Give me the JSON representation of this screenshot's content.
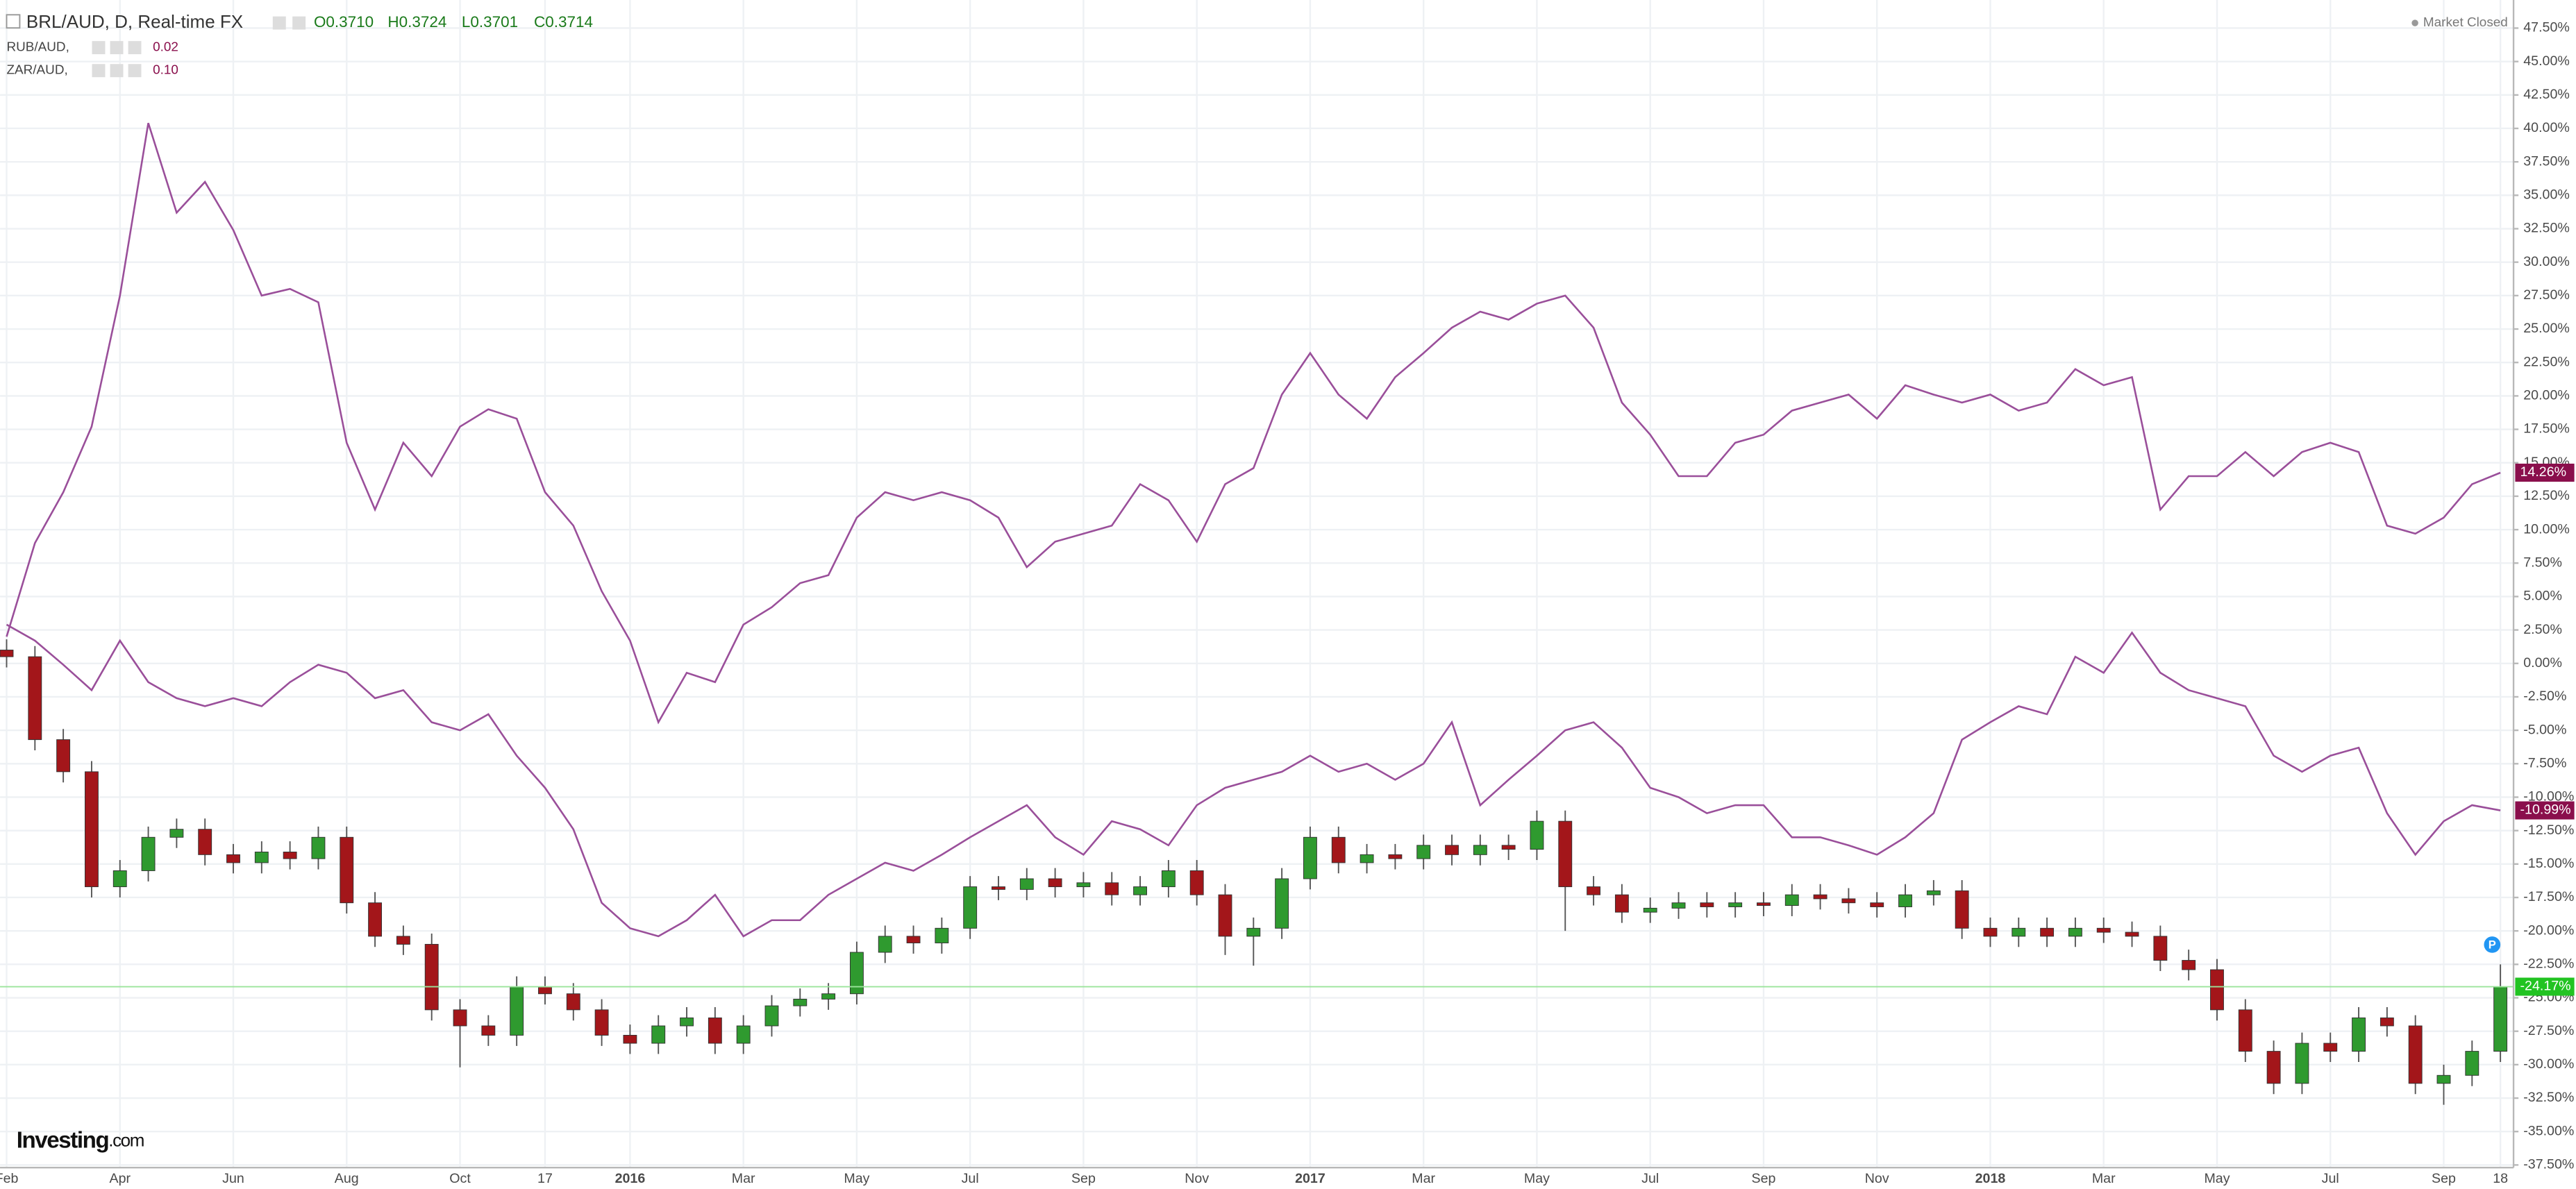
{
  "chart_data": {
    "type": "candlestick",
    "header": {
      "symbol": "BRL/AUD, D, Real-time FX",
      "open": "O0.3710",
      "high": "H0.3724",
      "low": "L0.3701",
      "close": "C0.3714"
    },
    "status": "Market Closed",
    "logo": {
      "brand": "Investing",
      "suffix": ".com"
    },
    "marker": "P",
    "categories": [
      "Feb",
      null,
      null,
      null,
      "Apr",
      null,
      null,
      null,
      "Jun",
      null,
      null,
      null,
      "Aug",
      null,
      null,
      null,
      "Oct",
      null,
      null,
      "17",
      null,
      null,
      "2016",
      null,
      null,
      null,
      "Mar",
      null,
      null,
      null,
      "May",
      null,
      null,
      null,
      "Jul",
      null,
      null,
      null,
      "Sep",
      null,
      null,
      null,
      "Nov",
      null,
      null,
      null,
      "2017",
      null,
      null,
      null,
      "Mar",
      null,
      null,
      null,
      "May",
      null,
      null,
      null,
      "Jul",
      null,
      null,
      null,
      "Sep",
      null,
      null,
      null,
      "Nov",
      null,
      null,
      null,
      "2018",
      null,
      null,
      null,
      "Mar",
      null,
      null,
      null,
      "May",
      null,
      null,
      null,
      "Jul",
      null,
      null,
      null,
      "Sep",
      null,
      "18"
    ],
    "candles": {
      "up_color": "#2f9a2f",
      "down_color": "#a3161a",
      "last_label": "-24.17%",
      "last_color": "#22c322",
      "open": [
        1.0,
        0.5,
        -5.7,
        -8.1,
        -16.7,
        -15.5,
        -13,
        -12.4,
        -14.3,
        -14.9,
        -14.1,
        -14.6,
        -13,
        -17.9,
        -20.4,
        -21,
        -25.9,
        -27.1,
        -27.8,
        -24.2,
        -24.7,
        -25.9,
        -27.8,
        -28.4,
        -27.1,
        -26.5,
        -28.4,
        -27.1,
        -25.6,
        -25.1,
        -24.7,
        -21.6,
        -20.4,
        -20.9,
        -19.8,
        -16.7,
        -16.9,
        -16.1,
        -16.7,
        -16.4,
        -17.3,
        -16.7,
        -15.5,
        -17.3,
        -20.4,
        -19.8,
        -16.1,
        -13,
        -14.9,
        -14.3,
        -14.6,
        -13.6,
        -14.3,
        -13.6,
        -13.9,
        -11.8,
        -16.7,
        -17.3,
        -18.6,
        -18.3,
        -17.9,
        -18.2,
        -17.9,
        -18.1,
        -17.3,
        -17.6,
        -17.9,
        -18.2,
        -17.3,
        -17.0,
        -19.8,
        -20.4,
        -19.8,
        -20.4,
        -19.8,
        -20.1,
        -20.4,
        -22.2,
        -22.9,
        -25.9,
        -29,
        -31.4,
        -28.4,
        -29,
        -26.5,
        -27.1,
        -31.4,
        -30.8,
        -29
      ],
      "high": [
        1.8,
        1.3,
        -4.9,
        -7.3,
        -14.7,
        -12.2,
        -11.6,
        -11.6,
        -13.5,
        -13.3,
        -13.3,
        -12.2,
        -12.2,
        -17.1,
        -19.6,
        -20.2,
        -25.1,
        -26.3,
        -23.4,
        -23.4,
        -23.9,
        -25.1,
        -27,
        -26.3,
        -25.7,
        -25.7,
        -26.3,
        -24.8,
        -24.3,
        -23.9,
        -20.8,
        -19.6,
        -19.6,
        -19,
        -15.9,
        -15.9,
        -15.3,
        -15.3,
        -15.6,
        -15.6,
        -15.9,
        -14.7,
        -14.7,
        -16.5,
        -19,
        -15.3,
        -12.2,
        -12.2,
        -13.5,
        -13.5,
        -12.8,
        -12.8,
        -12.8,
        -12.8,
        -11,
        -11,
        -15.9,
        -16.5,
        -17.5,
        -17.1,
        -17.1,
        -17.1,
        -17.1,
        -16.5,
        -16.5,
        -16.8,
        -17.1,
        -16.5,
        -16.2,
        -16.2,
        -19,
        -19,
        -19,
        -19,
        -19,
        -19.3,
        -19.6,
        -21.4,
        -22.1,
        -25.1,
        -28.2,
        -27.6,
        -27.6,
        -25.7,
        -25.7,
        -26.3,
        -30,
        -28.2,
        -22.5
      ],
      "low": [
        -0.3,
        -6.5,
        -8.9,
        -17.5,
        -17.5,
        -16.3,
        -13.8,
        -15.1,
        -15.7,
        -15.7,
        -15.4,
        -15.4,
        -18.7,
        -21.2,
        -21.8,
        -26.7,
        -30.2,
        -28.6,
        -28.6,
        -25.5,
        -26.7,
        -28.6,
        -29.2,
        -29.2,
        -27.9,
        -29.2,
        -29.2,
        -27.9,
        -26.4,
        -25.9,
        -25.5,
        -22.4,
        -21.7,
        -21.7,
        -20.6,
        -17.7,
        -17.7,
        -17.5,
        -17.5,
        -18.1,
        -18.1,
        -17.5,
        -18.1,
        -21.8,
        -22.6,
        -20.6,
        -16.9,
        -15.7,
        -15.7,
        -15.4,
        -15.4,
        -15.1,
        -15.1,
        -14.7,
        -14.7,
        -20,
        -18.1,
        -19.4,
        -19.4,
        -19.1,
        -19,
        -19,
        -18.9,
        -18.9,
        -18.4,
        -18.7,
        -19,
        -19,
        -18.1,
        -20.6,
        -21.2,
        -21.2,
        -21.2,
        -21.2,
        -20.9,
        -21.2,
        -23,
        -23.7,
        -26.7,
        -29.8,
        -32.2,
        -32.2,
        -29.8,
        -29.8,
        -27.9,
        -32.2,
        -33,
        -31.6,
        -29.8
      ],
      "close": [
        0.5,
        -5.7,
        -8.1,
        -16.7,
        -15.5,
        -13,
        -12.4,
        -14.3,
        -14.9,
        -14.1,
        -14.6,
        -13,
        -17.9,
        -20.4,
        -21,
        -25.9,
        -27.1,
        -27.8,
        -24.2,
        -24.7,
        -25.9,
        -27.8,
        -28.4,
        -27.1,
        -26.5,
        -28.4,
        -27.1,
        -25.6,
        -25.1,
        -24.7,
        -21.6,
        -20.4,
        -20.9,
        -19.8,
        -16.7,
        -16.9,
        -16.1,
        -16.7,
        -16.4,
        -17.3,
        -16.7,
        -15.5,
        -17.3,
        -20.4,
        -19.8,
        -16.1,
        -13,
        -14.9,
        -14.3,
        -14.6,
        -13.6,
        -14.3,
        -13.6,
        -13.9,
        -11.8,
        -16.7,
        -17.3,
        -18.6,
        -18.3,
        -17.9,
        -18.2,
        -17.9,
        -18.1,
        -17.3,
        -17.6,
        -17.9,
        -18.2,
        -17.3,
        -17.0,
        -19.8,
        -20.4,
        -19.8,
        -20.4,
        -19.8,
        -20.1,
        -20.4,
        -22.2,
        -22.9,
        -25.9,
        -29,
        -31.4,
        -28.4,
        -29,
        -26.5,
        -27.1,
        -31.4,
        -30.8,
        -29,
        -24.17
      ]
    },
    "series": [
      {
        "name": "RUB/AUD,",
        "legend_value": "0.02",
        "color": "#9a4f9a",
        "last_label": "14.26%",
        "last_color": "#8a0f4c",
        "values": [
          2,
          9,
          12.8,
          17.7,
          27.5,
          40.4,
          33.7,
          36,
          32.4,
          27.5,
          28,
          27,
          16.5,
          11.5,
          16.5,
          14,
          17.7,
          19,
          18.3,
          12.8,
          10.3,
          5.4,
          1.7,
          -4.4,
          -0.7,
          -1.4,
          2.9,
          4.2,
          6,
          6.6,
          10.9,
          12.8,
          12.2,
          12.8,
          12.2,
          10.9,
          7.2,
          9.1,
          9.7,
          10.3,
          13.4,
          12.2,
          9.1,
          13.4,
          14.6,
          20.1,
          23.2,
          20.1,
          18.3,
          21.4,
          23.2,
          25.1,
          26.3,
          25.7,
          26.9,
          27.5,
          25.1,
          19.5,
          17.1,
          14,
          14,
          16.5,
          17.1,
          18.9,
          19.5,
          20.1,
          18.3,
          20.8,
          20.1,
          19.5,
          20.1,
          18.9,
          19.5,
          22,
          20.8,
          21.4,
          11.5,
          14,
          14,
          15.8,
          14,
          15.8,
          16.5,
          15.8,
          10.3,
          9.7,
          10.9,
          13.4,
          14.26
        ]
      },
      {
        "name": "ZAR/AUD,",
        "legend_value": "0.10",
        "color": "#9a4f9a",
        "last_label": "-10.99%",
        "last_color": "#8a0f4c",
        "values": [
          2.9,
          1.7,
          -0.1,
          -2,
          1.7,
          -1.4,
          -2.6,
          -3.2,
          -2.6,
          -3.2,
          -1.4,
          -0.1,
          -0.7,
          -2.6,
          -2,
          -4.4,
          -5,
          -3.8,
          -6.9,
          -9.3,
          -12.4,
          -17.9,
          -19.8,
          -20.4,
          -19.2,
          -17.3,
          -20.4,
          -19.2,
          -19.2,
          -17.3,
          -16.1,
          -14.9,
          -15.5,
          -14.3,
          -13,
          -11.8,
          -10.6,
          -13,
          -14.3,
          -11.8,
          -12.4,
          -13.6,
          -10.6,
          -9.3,
          -8.7,
          -8.1,
          -6.9,
          -8.1,
          -7.5,
          -8.7,
          -7.5,
          -4.4,
          -10.6,
          -8.7,
          -6.9,
          -5,
          -4.4,
          -6.3,
          -9.3,
          -10,
          -11.2,
          -10.6,
          -10.6,
          -13,
          -13,
          -13.6,
          -14.3,
          -13,
          -11.2,
          -5.7,
          -4.4,
          -3.2,
          -3.8,
          0.5,
          -0.7,
          2.3,
          -0.7,
          -2,
          -2.6,
          -3.2,
          -6.9,
          -8.1,
          -6.9,
          -6.3,
          -11.2,
          -14.3,
          -11.8,
          -10.6,
          -10.99
        ]
      }
    ],
    "ylim": [
      -37.7,
      49.6
    ],
    "yticks": [
      {
        "value": 47.5,
        "label": "47.50%"
      },
      {
        "value": 45,
        "label": "45.00%"
      },
      {
        "value": 42.5,
        "label": "42.50%"
      },
      {
        "value": 40,
        "label": "40.00%"
      },
      {
        "value": 37.5,
        "label": "37.50%"
      },
      {
        "value": 35,
        "label": "35.00%"
      },
      {
        "value": 32.5,
        "label": "32.50%"
      },
      {
        "value": 30,
        "label": "30.00%"
      },
      {
        "value": 27.5,
        "label": "27.50%"
      },
      {
        "value": 25,
        "label": "25.00%"
      },
      {
        "value": 22.5,
        "label": "22.50%"
      },
      {
        "value": 20,
        "label": "20.00%"
      },
      {
        "value": 17.5,
        "label": "17.50%"
      },
      {
        "value": 15,
        "label": "15.00%"
      },
      {
        "value": 12.5,
        "label": "12.50%"
      },
      {
        "value": 10,
        "label": "10.00%"
      },
      {
        "value": 7.5,
        "label": "7.50%"
      },
      {
        "value": 5,
        "label": "5.00%"
      },
      {
        "value": 2.5,
        "label": "2.50%"
      },
      {
        "value": 0,
        "label": "0.00%"
      },
      {
        "value": -2.5,
        "label": "-2.50%"
      },
      {
        "value": -5,
        "label": "-5.00%"
      },
      {
        "value": -7.5,
        "label": "-7.50%"
      },
      {
        "value": -10,
        "label": "-10.00%"
      },
      {
        "value": -12.5,
        "label": "-12.50%"
      },
      {
        "value": -15,
        "label": "-15.00%"
      },
      {
        "value": -17.5,
        "label": "-17.50%"
      },
      {
        "value": -20,
        "label": "-20.00%"
      },
      {
        "value": -22.5,
        "label": "-22.50%"
      },
      {
        "value": -25,
        "label": "-25.00%"
      },
      {
        "value": -27.5,
        "label": "-27.50%"
      },
      {
        "value": -30,
        "label": "-30.00%"
      },
      {
        "value": -32.5,
        "label": "-32.50%"
      },
      {
        "value": -35,
        "label": "-35.00%"
      },
      {
        "value": -37.5,
        "label": "-37.50%"
      }
    ],
    "grid": true
  }
}
